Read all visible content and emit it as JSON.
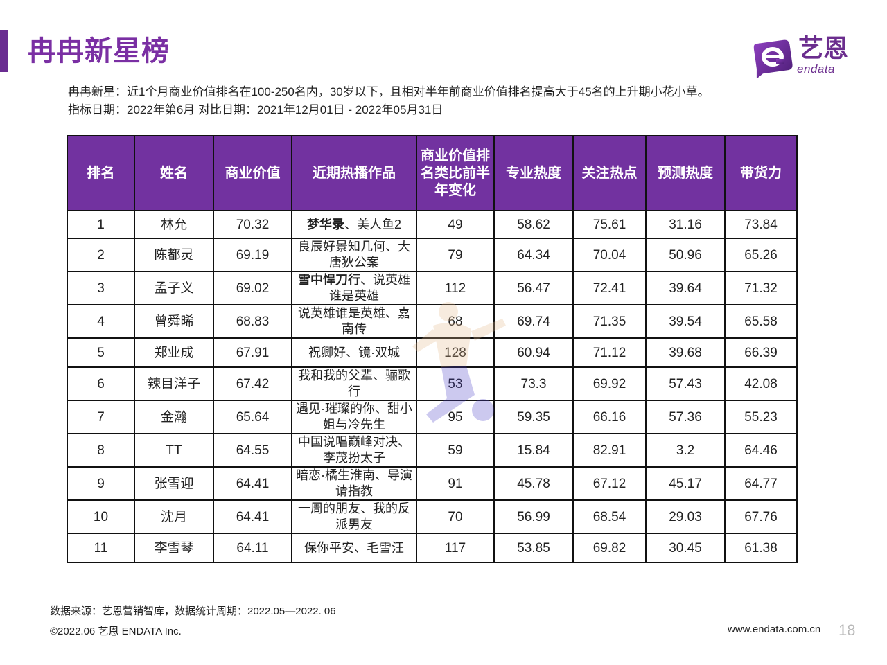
{
  "title": "冉冉新星榜",
  "logo": {
    "cn": "艺恩",
    "en": "endata"
  },
  "description": {
    "line1": "冉冉新星：近1个月商业价值排名在100-250名内，30岁以下，且相对半年前商业价值排名提高大于45名的上升期小花小草。",
    "line2": "指标日期：2022年第6月 对比日期：2021年12月01日 - 2022年05月31日"
  },
  "table": {
    "headers": [
      "排名",
      "姓名",
      "商业价值",
      "近期热播作品",
      "商业价值排名类比前半年变化",
      "专业热度",
      "关注热点",
      "预测热度",
      "带货力"
    ],
    "rows": [
      {
        "rank": "1",
        "name": "林允",
        "value": "70.32",
        "work_bold": "梦华录",
        "work": "、美人鱼2",
        "change": "49",
        "pro": "58.62",
        "focus": "75.61",
        "forecast": "31.16",
        "sales": "73.84",
        "h": 40
      },
      {
        "rank": "2",
        "name": "陈都灵",
        "value": "69.19",
        "work_bold": "",
        "work": "良辰好景知几何、大唐狄公案",
        "change": "79",
        "pro": "64.34",
        "focus": "70.04",
        "forecast": "50.96",
        "sales": "65.26",
        "h": 48
      },
      {
        "rank": "3",
        "name": "孟子义",
        "value": "69.02",
        "work_bold": "雪中悍刀行",
        "work": "、说英雄谁是英雄",
        "change": "112",
        "pro": "56.47",
        "focus": "72.41",
        "forecast": "39.64",
        "sales": "71.32",
        "h": 48
      },
      {
        "rank": "4",
        "name": "曾舜晞",
        "value": "68.83",
        "work_bold": "",
        "work": "说英雄谁是英雄、嘉南传",
        "change": "68",
        "pro": "69.74",
        "focus": "71.35",
        "forecast": "39.54",
        "sales": "65.58",
        "h": 48
      },
      {
        "rank": "5",
        "name": "郑业成",
        "value": "67.91",
        "work_bold": "",
        "work": "祝卿好、镜·双城",
        "change": "128",
        "pro": "60.94",
        "focus": "71.12",
        "forecast": "39.68",
        "sales": "66.39",
        "h": 42
      },
      {
        "rank": "6",
        "name": "辣目洋子",
        "value": "67.42",
        "work_bold": "",
        "work": "我和我的父辈、骊歌行",
        "change": "53",
        "pro": "73.3",
        "focus": "69.92",
        "forecast": "57.43",
        "sales": "42.08",
        "h": 48
      },
      {
        "rank": "7",
        "name": "金瀚",
        "value": "65.64",
        "work_bold": "",
        "work": "遇见·璀璨的你、甜小姐与冷先生",
        "change": "95",
        "pro": "59.35",
        "focus": "66.16",
        "forecast": "57.36",
        "sales": "55.23",
        "h": 48
      },
      {
        "rank": "8",
        "name": "TT",
        "value": "64.55",
        "work_bold": "",
        "work": "中国说唱巅峰对决、李茂扮太子",
        "change": "59",
        "pro": "15.84",
        "focus": "82.91",
        "forecast": "3.2",
        "sales": "64.46",
        "h": 48
      },
      {
        "rank": "9",
        "name": "张雪迎",
        "value": "64.41",
        "work_bold": "",
        "work": "暗恋·橘生淮南、导演请指教",
        "change": "91",
        "pro": "45.78",
        "focus": "67.12",
        "forecast": "45.17",
        "sales": "64.77",
        "h": 48
      },
      {
        "rank": "10",
        "name": "沈月",
        "value": "64.41",
        "work_bold": "",
        "work": "一周的朋友、我的反派男友",
        "change": "70",
        "pro": "56.99",
        "focus": "68.54",
        "forecast": "29.03",
        "sales": "67.76",
        "h": 48
      },
      {
        "rank": "11",
        "name": "李雪琴",
        "value": "64.11",
        "work_bold": "",
        "work": "保你平安、毛雪汪",
        "change": "117",
        "pro": "53.85",
        "focus": "69.82",
        "forecast": "30.45",
        "sales": "61.38",
        "h": 42
      }
    ]
  },
  "footer": {
    "source": "数据来源：艺恩营销智库，数据统计周期：2022.05—2022. 06",
    "copyright": "©2022.06 艺恩 ENDATA Inc.",
    "website": "www.endata.com.cn",
    "page_number": "18"
  },
  "colors": {
    "accent": "#7232a0",
    "title": "#7a2fa3"
  }
}
